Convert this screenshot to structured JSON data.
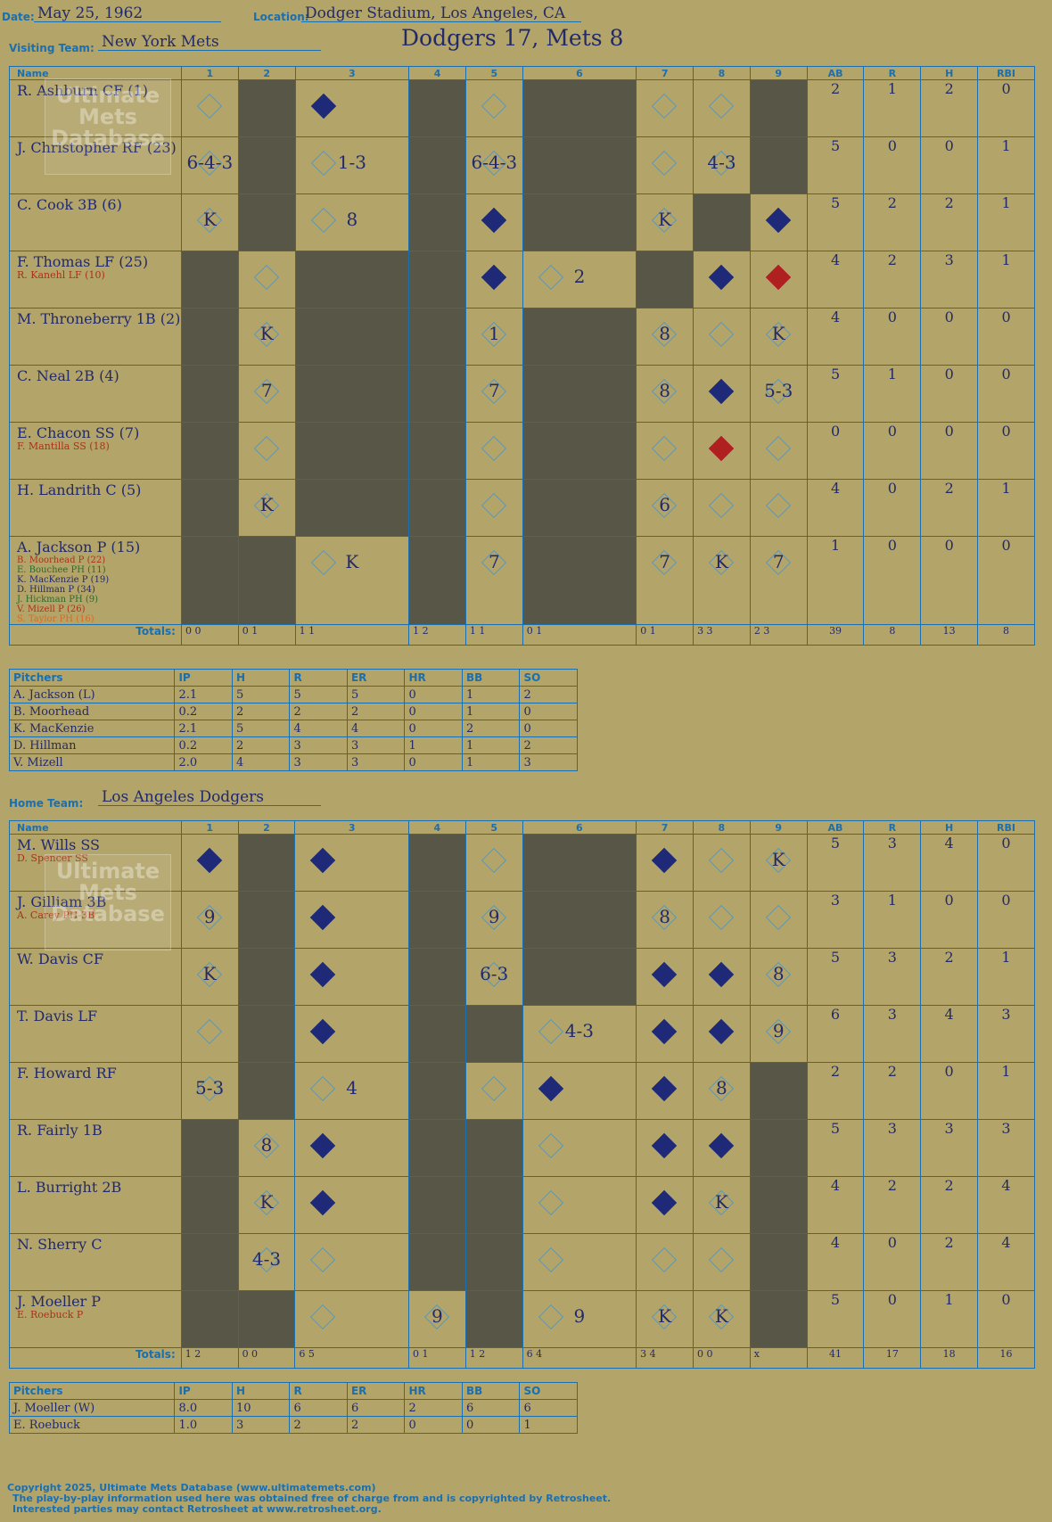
{
  "header": {
    "date_label": "Date:",
    "date": "May 25, 1962",
    "location_label": "Location:",
    "location": "Dodger Stadium, Los Angeles, CA",
    "visiting_label": "Visiting Team:",
    "visiting_team": "New York Mets",
    "title": "Dodgers 17, Mets 8",
    "home_label": "Home Team:",
    "home_team": "Los Angeles Dodgers"
  },
  "columns": {
    "name": "Name",
    "innings": [
      "1",
      "2",
      "3",
      "4",
      "5",
      "6",
      "7",
      "8",
      "9"
    ],
    "stats": [
      "AB",
      "R",
      "H",
      "RBI"
    ]
  },
  "watermark": "Ultimate Mets Database",
  "visitors": {
    "rows": [
      {
        "name": "R. Ashburn CF (1)",
        "subs": [],
        "ab": "2",
        "r": "1",
        "h": "2",
        "rbi": "0"
      },
      {
        "name": "J. Christopher RF (23)",
        "subs": [],
        "ab": "5",
        "r": "0",
        "h": "0",
        "rbi": "1"
      },
      {
        "name": "C. Cook 3B (6)",
        "subs": [],
        "ab": "5",
        "r": "2",
        "h": "2",
        "rbi": "1"
      },
      {
        "name": "F. Thomas LF (25)",
        "subs": [
          "R. Kanehl LF (10)"
        ],
        "ab": "4",
        "r": "2",
        "h": "3",
        "rbi": "1"
      },
      {
        "name": "M. Throneberry 1B (2)",
        "subs": [],
        "ab": "4",
        "r": "0",
        "h": "0",
        "rbi": "0"
      },
      {
        "name": "C. Neal 2B (4)",
        "subs": [],
        "ab": "5",
        "r": "1",
        "h": "0",
        "rbi": "0"
      },
      {
        "name": "E. Chacon SS (7)",
        "subs": [
          "F. Mantilla SS (18)"
        ],
        "ab": "0",
        "r": "0",
        "h": "0",
        "rbi": "0"
      },
      {
        "name": "H. Landrith C (5)",
        "subs": [],
        "ab": "4",
        "r": "0",
        "h": "2",
        "rbi": "1"
      },
      {
        "name": "A. Jackson P (15)",
        "subs": [
          "B. Moorhead P (22)",
          "E. Bouchee PH (11)",
          "K. MacKenzie P (19)",
          "D. Hillman P (34)",
          "J. Hickman PH (9)",
          "V. Mizell P (26)",
          "S. Taylor PH (16)"
        ],
        "ab": "1",
        "r": "0",
        "h": "0",
        "rbi": "0"
      }
    ],
    "totals_label": "Totals:",
    "totals_rh": [
      "0 0",
      "0 1",
      "1 1",
      "1 2",
      "1 1",
      "0 1",
      "0 1",
      "3 3",
      "2 3"
    ],
    "totals": {
      "ab": "39",
      "r": "8",
      "h": "13",
      "rbi": "8"
    },
    "pitchers_header": [
      "Pitchers",
      "IP",
      "H",
      "R",
      "ER",
      "HR",
      "BB",
      "SO"
    ],
    "pitchers": [
      [
        "A. Jackson (L)",
        "2.1",
        "5",
        "5",
        "5",
        "0",
        "1",
        "2"
      ],
      [
        "B. Moorhead",
        "0.2",
        "2",
        "2",
        "2",
        "0",
        "1",
        "0"
      ],
      [
        "K. MacKenzie",
        "2.1",
        "5",
        "4",
        "4",
        "0",
        "2",
        "0"
      ],
      [
        "D. Hillman",
        "0.2",
        "2",
        "3",
        "3",
        "1",
        "1",
        "2"
      ],
      [
        "V. Mizell",
        "2.0",
        "4",
        "3",
        "3",
        "0",
        "1",
        "3"
      ]
    ]
  },
  "home": {
    "rows": [
      {
        "name": "M. Wills SS",
        "subs": [
          "D. Spencer SS"
        ],
        "ab": "5",
        "r": "3",
        "h": "4",
        "rbi": "0"
      },
      {
        "name": "J. Gilliam 3B",
        "subs": [
          "A. Carey PH-3B"
        ],
        "ab": "3",
        "r": "1",
        "h": "0",
        "rbi": "0"
      },
      {
        "name": "W. Davis CF",
        "subs": [],
        "ab": "5",
        "r": "3",
        "h": "2",
        "rbi": "1"
      },
      {
        "name": "T. Davis LF",
        "subs": [],
        "ab": "6",
        "r": "3",
        "h": "4",
        "rbi": "3"
      },
      {
        "name": "F. Howard RF",
        "subs": [],
        "ab": "2",
        "r": "2",
        "h": "0",
        "rbi": "1"
      },
      {
        "name": "R. Fairly 1B",
        "subs": [],
        "ab": "5",
        "r": "3",
        "h": "3",
        "rbi": "3"
      },
      {
        "name": "L. Burright 2B",
        "subs": [],
        "ab": "4",
        "r": "2",
        "h": "2",
        "rbi": "4"
      },
      {
        "name": "N. Sherry C",
        "subs": [],
        "ab": "4",
        "r": "0",
        "h": "2",
        "rbi": "4"
      },
      {
        "name": "J. Moeller P",
        "subs": [
          "E. Roebuck P"
        ],
        "ab": "5",
        "r": "0",
        "h": "1",
        "rbi": "0"
      }
    ],
    "totals_label": "Totals:",
    "totals_rh": [
      "1 2",
      "0 0",
      "6 5",
      "0 1",
      "1 2",
      "6 4",
      "3 4",
      "0 0",
      "x"
    ],
    "totals": {
      "ab": "41",
      "r": "17",
      "h": "18",
      "rbi": "16"
    },
    "pitchers_header": [
      "Pitchers",
      "IP",
      "H",
      "R",
      "ER",
      "HR",
      "BB",
      "SO"
    ],
    "pitchers": [
      [
        "J. Moeller (W)",
        "8.0",
        "10",
        "6",
        "6",
        "2",
        "6",
        "6"
      ],
      [
        "E. Roebuck",
        "1.0",
        "3",
        "2",
        "2",
        "0",
        "0",
        "1"
      ]
    ]
  },
  "footer": [
    "Copyright 2025, Ultimate Mets Database (www.ultimatemets.com)",
    "The play-by-play information used here was obtained free of charge from and is copyrighted by Retrosheet.",
    "Interested parties may contact Retrosheet at www.retrosheet.org."
  ]
}
